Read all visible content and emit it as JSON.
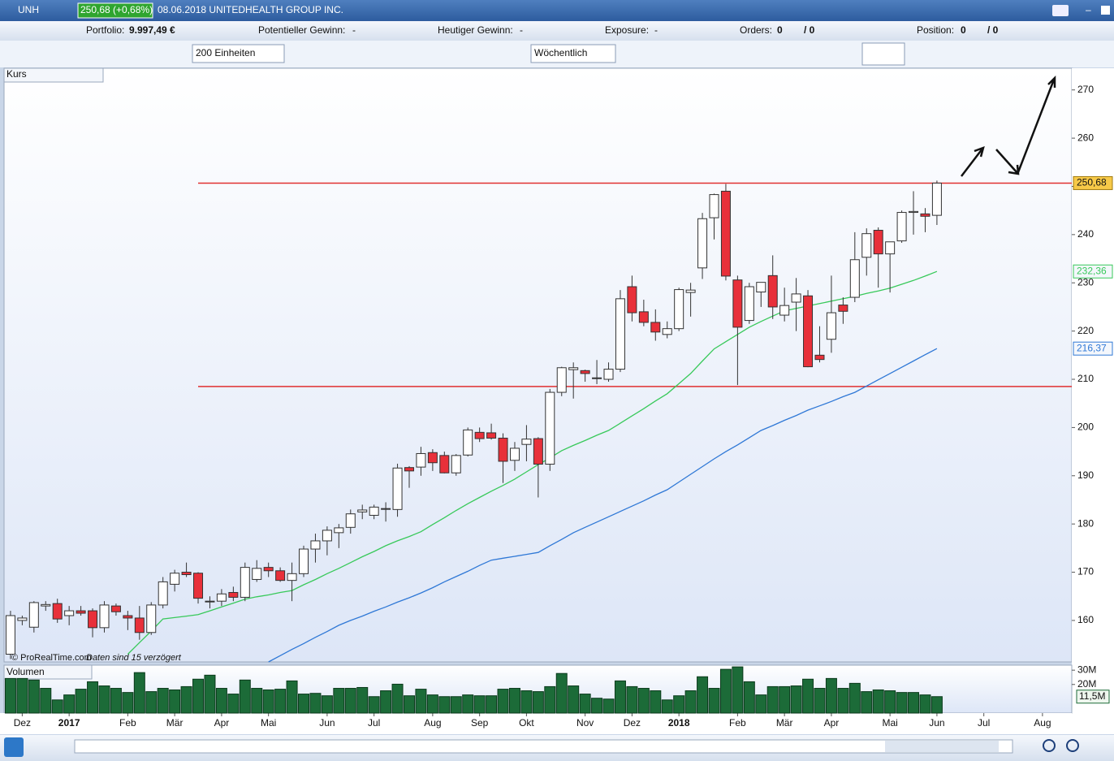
{
  "header": {
    "symbol": "UNH",
    "quote": "250,68 (+0,68%)",
    "info": "08.06.2018 UNITEDHEALTH GROUP INC."
  },
  "account": {
    "portfolio_label": "Portfolio:",
    "portfolio": "9.997,49 €",
    "gain_label": "Potentieller Gewinn:",
    "gain": "-",
    "today_label": "Heutiger Gewinn:",
    "today": "-",
    "exposure_label": "Exposure:",
    "exposure": "-",
    "orders_label": "Orders:",
    "orders": "0",
    "orders_total": "/ 0",
    "position_label": "Position:",
    "position": "0",
    "position_total": "/ 0"
  },
  "toolbar": {
    "units": "200 Einheiten",
    "interval": "Wöchentlich"
  },
  "chart_data": [
    {
      "type": "candlestick",
      "title": "Kurs",
      "source": "© ProRealTime.com",
      "note": "Daten sind 15 verzögert",
      "up_color": "#ffffff",
      "down_color": "#e8303a",
      "open": [
        153,
        160,
        158.6,
        163,
        163.5,
        161,
        162,
        162,
        158.5,
        163,
        161,
        160.5,
        157.5,
        163.2,
        167.5,
        170,
        169.8,
        164,
        164,
        165.8,
        164.8,
        168.5,
        171,
        170.3,
        168.3,
        169.7,
        174.8,
        176.5,
        178.2,
        179.3,
        182.5,
        181.8,
        183.2,
        183,
        191.7,
        191.8,
        194.8,
        194.2,
        190.6,
        194.3,
        199,
        198.9,
        197.8,
        193.2,
        196.5,
        197.7,
        192.4,
        207.3,
        212,
        211.8,
        210.3,
        210,
        212.1,
        229.2,
        224,
        221.8,
        219.3,
        220.5,
        228,
        233.1,
        243.5,
        249,
        230.6,
        222.2,
        228.1,
        231.5,
        223.3,
        226,
        227.3,
        215,
        218.3,
        225.4,
        227,
        235.3,
        240.9,
        236,
        238.7,
        244.6,
        244.3,
        244
      ],
      "high": [
        162,
        161,
        164,
        164,
        164.5,
        163,
        163,
        162.5,
        164,
        163.5,
        162,
        163,
        163.8,
        169,
        170.5,
        172,
        170,
        165,
        166.5,
        167,
        172,
        172.5,
        172,
        171,
        172,
        175.5,
        178,
        179.5,
        180,
        183,
        184,
        184,
        184.5,
        192.5,
        192,
        196,
        195.5,
        195,
        194.5,
        200,
        200,
        200.8,
        198.8,
        197,
        200.5,
        198,
        208,
        212.6,
        213.5,
        212,
        214,
        213.5,
        228.5,
        231.5,
        226.5,
        224.5,
        222,
        229,
        230,
        244.5,
        248.5,
        250.5,
        231.5,
        230,
        230,
        235.7,
        229,
        231,
        228.5,
        221,
        231.5,
        227,
        240.5,
        241.3,
        241.5,
        238,
        245,
        249,
        245.5,
        251.2
      ],
      "low": [
        152,
        159,
        157.5,
        162,
        159.5,
        159,
        161,
        156.5,
        157.5,
        161,
        158,
        156,
        157,
        162.5,
        166,
        169,
        163.5,
        162.5,
        163,
        164,
        164,
        168,
        169,
        168,
        164,
        169,
        172,
        173.5,
        175,
        178,
        181,
        181,
        180.5,
        181.5,
        187.5,
        190,
        191,
        190.5,
        190,
        194,
        197,
        197.5,
        188.5,
        191,
        193,
        185.5,
        191,
        206.5,
        206,
        209.5,
        209,
        209.5,
        211.5,
        222,
        221,
        218,
        218.5,
        220,
        223,
        230.8,
        239,
        230.5,
        208.8,
        221.5,
        225,
        222.5,
        222,
        220,
        212.5,
        213.5,
        215.5,
        221.5,
        226,
        231.5,
        229,
        228,
        238.3,
        240,
        240.5,
        242
      ],
      "close": [
        161,
        160.5,
        163.7,
        163.3,
        160.3,
        162,
        161.5,
        158.5,
        163.2,
        161.8,
        160.5,
        157.5,
        163.2,
        168,
        169.8,
        169.5,
        164.6,
        164,
        165.5,
        164.8,
        171,
        170.8,
        170.3,
        168.3,
        169.7,
        174.8,
        176.5,
        178.7,
        179.2,
        182.1,
        182.9,
        183.5,
        183.1,
        191.6,
        191,
        194.6,
        192.7,
        190.6,
        194.2,
        199.5,
        197.7,
        197.8,
        193,
        195.7,
        197.6,
        192.4,
        207.3,
        212.4,
        212.4,
        211.2,
        210.2,
        212.1,
        226.7,
        223.8,
        221.8,
        219.8,
        220.5,
        228.6,
        228.5,
        243.3,
        248.3,
        231.4,
        220.8,
        229.2,
        230.1,
        225,
        225.3,
        227.7,
        212.6,
        214.1,
        223.8,
        224.1,
        234.8,
        240.2,
        236,
        238.5,
        244.6,
        244.8,
        243.8,
        250.68
      ],
      "close_label": "250,68",
      "close_label_color": "#f7c948",
      "lines": [
        {
          "color": "#38c95a",
          "last_label": "232,36",
          "values": [
            null,
            null,
            null,
            null,
            null,
            null,
            null,
            null,
            null,
            null,
            153.0,
            155.4,
            157.8,
            160.3,
            160.6,
            160.9,
            161.2,
            162.0,
            162.8,
            163.6,
            164.4,
            164.9,
            165.3,
            165.8,
            166.2,
            167.4,
            168.5,
            169.7,
            170.8,
            172.0,
            173.2,
            174.3,
            175.5,
            176.5,
            177.4,
            178.4,
            179.9,
            181.3,
            182.8,
            184.2,
            185.5,
            186.8,
            188.0,
            189.3,
            190.8,
            192.3,
            193.7,
            195.2,
            196.3,
            197.3,
            198.4,
            199.4,
            200.9,
            202.4,
            203.9,
            205.5,
            207.0,
            209.1,
            211.2,
            213.8,
            216.3,
            217.8,
            219.3,
            220.8,
            222.0,
            223.1,
            224.2,
            224.7,
            225.2,
            225.7,
            226.2,
            226.7,
            227.2,
            227.8,
            228.3,
            228.9,
            229.7,
            230.5,
            231.4,
            232.36
          ]
        },
        {
          "color": "#2f78d6",
          "last_label": "216,37",
          "values": [
            null,
            null,
            null,
            null,
            null,
            null,
            null,
            null,
            null,
            null,
            null,
            null,
            null,
            null,
            null,
            null,
            null,
            null,
            null,
            null,
            null,
            null,
            151.4,
            152.7,
            154.0,
            155.2,
            156.5,
            157.7,
            159.0,
            160.0,
            160.9,
            161.9,
            162.8,
            163.8,
            164.7,
            165.7,
            166.8,
            168.0,
            169.1,
            170.2,
            171.4,
            172.5,
            172.9,
            173.3,
            173.7,
            174.1,
            175.5,
            176.8,
            178.2,
            179.3,
            180.4,
            181.5,
            182.6,
            183.7,
            184.8,
            186.0,
            187.1,
            188.7,
            190.3,
            191.9,
            193.5,
            195.0,
            196.4,
            197.9,
            199.4,
            200.4,
            201.5,
            202.5,
            203.6,
            204.5,
            205.4,
            206.4,
            207.3,
            208.6,
            209.9,
            211.2,
            212.5,
            213.8,
            215.1,
            216.37
          ]
        }
      ],
      "levels": [
        {
          "value": 250.68,
          "color": "#e03030"
        },
        {
          "value": 208.5,
          "color": "#e03030"
        }
      ],
      "xlim": [
        -0.55,
        90.5
      ],
      "ylim": [
        151.4,
        274.5
      ],
      "yticks": [
        160,
        170,
        180,
        190,
        200,
        210,
        220,
        230,
        240,
        250,
        260,
        270
      ],
      "xticks": [
        {
          "value": 1,
          "label": "Dez"
        },
        {
          "value": 5,
          "label": "2017"
        },
        {
          "value": 10,
          "label": "Feb"
        },
        {
          "value": 14,
          "label": "Mär"
        },
        {
          "value": 18,
          "label": "Apr"
        },
        {
          "value": 22,
          "label": "Mai"
        },
        {
          "value": 27,
          "label": "Jun"
        },
        {
          "value": 31,
          "label": "Jul"
        },
        {
          "value": 36,
          "label": "Aug"
        },
        {
          "value": 40,
          "label": "Sep"
        },
        {
          "value": 44,
          "label": "Okt"
        },
        {
          "value": 49,
          "label": "Nov"
        },
        {
          "value": 53,
          "label": "Dez"
        },
        {
          "value": 57,
          "label": "2018"
        },
        {
          "value": 62,
          "label": "Feb"
        },
        {
          "value": 66,
          "label": "Mär"
        },
        {
          "value": 70,
          "label": "Apr"
        },
        {
          "value": 75,
          "label": "Mai"
        },
        {
          "value": 79,
          "label": "Jun"
        },
        {
          "value": 83,
          "label": "Jul"
        },
        {
          "value": 88,
          "label": "Aug"
        }
      ]
    },
    {
      "type": "bar",
      "title": "Volumen",
      "color": "#1c6b38",
      "last_label": "11,5M",
      "values": [
        24.2,
        24.2,
        23.1,
        17.3,
        9.2,
        12.7,
        16.7,
        21.9,
        19.0,
        17.3,
        14.4,
        28.3,
        15.0,
        17.3,
        16.2,
        18.5,
        23.7,
        26.5,
        17.3,
        13.3,
        23.1,
        17.3,
        16.2,
        16.7,
        22.5,
        13.3,
        13.8,
        12.1,
        17.3,
        17.3,
        17.9,
        11.5,
        15.6,
        20.2,
        12.1,
        16.7,
        12.7,
        11.5,
        11.5,
        12.7,
        12.1,
        12.1,
        16.7,
        17.3,
        15.6,
        15.0,
        18.5,
        27.7,
        19.0,
        13.3,
        10.4,
        9.8,
        22.5,
        18.5,
        17.3,
        15.6,
        9.2,
        12.1,
        15.6,
        25.4,
        17.3,
        30.6,
        32.3,
        21.9,
        12.7,
        18.5,
        18.5,
        19.0,
        23.7,
        17.3,
        24.2,
        17.3,
        20.8,
        15.0,
        16.2,
        15.6,
        14.4,
        14.4,
        12.7,
        11.5
      ],
      "xlim": [
        -0.55,
        90.5
      ],
      "ylim": [
        0,
        33.5
      ],
      "yticks": [
        {
          "value": 30,
          "label": "30M"
        },
        {
          "value": 20,
          "label": "20M"
        }
      ]
    }
  ]
}
